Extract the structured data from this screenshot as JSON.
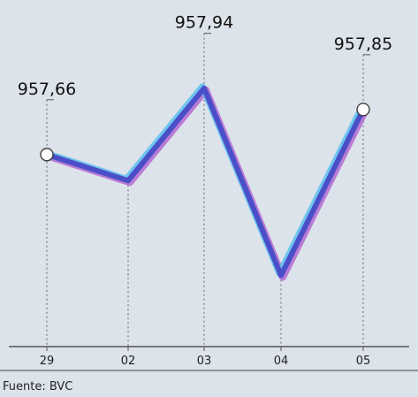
{
  "chart_data": {
    "type": "line",
    "categories": [
      "29",
      "02",
      "03",
      "04",
      "05"
    ],
    "values": [
      957.66,
      957.55,
      957.94,
      957.15,
      957.85
    ],
    "data_labels": [
      {
        "index": 0,
        "text": "957,66"
      },
      {
        "index": 2,
        "text": "957,94"
      },
      {
        "index": 4,
        "text": "957,85"
      }
    ],
    "marked_points": [
      0,
      4
    ],
    "ylim": [
      956.85,
      958.2
    ],
    "grid": "vertical-dashed",
    "colors": {
      "line": "#4a4fc8",
      "line_glow": "#5cc0f0",
      "line_shadow": "#b060d0",
      "axis": "#555555",
      "marker_fill": "#ffffff"
    }
  },
  "source": "Fuente: BVC"
}
